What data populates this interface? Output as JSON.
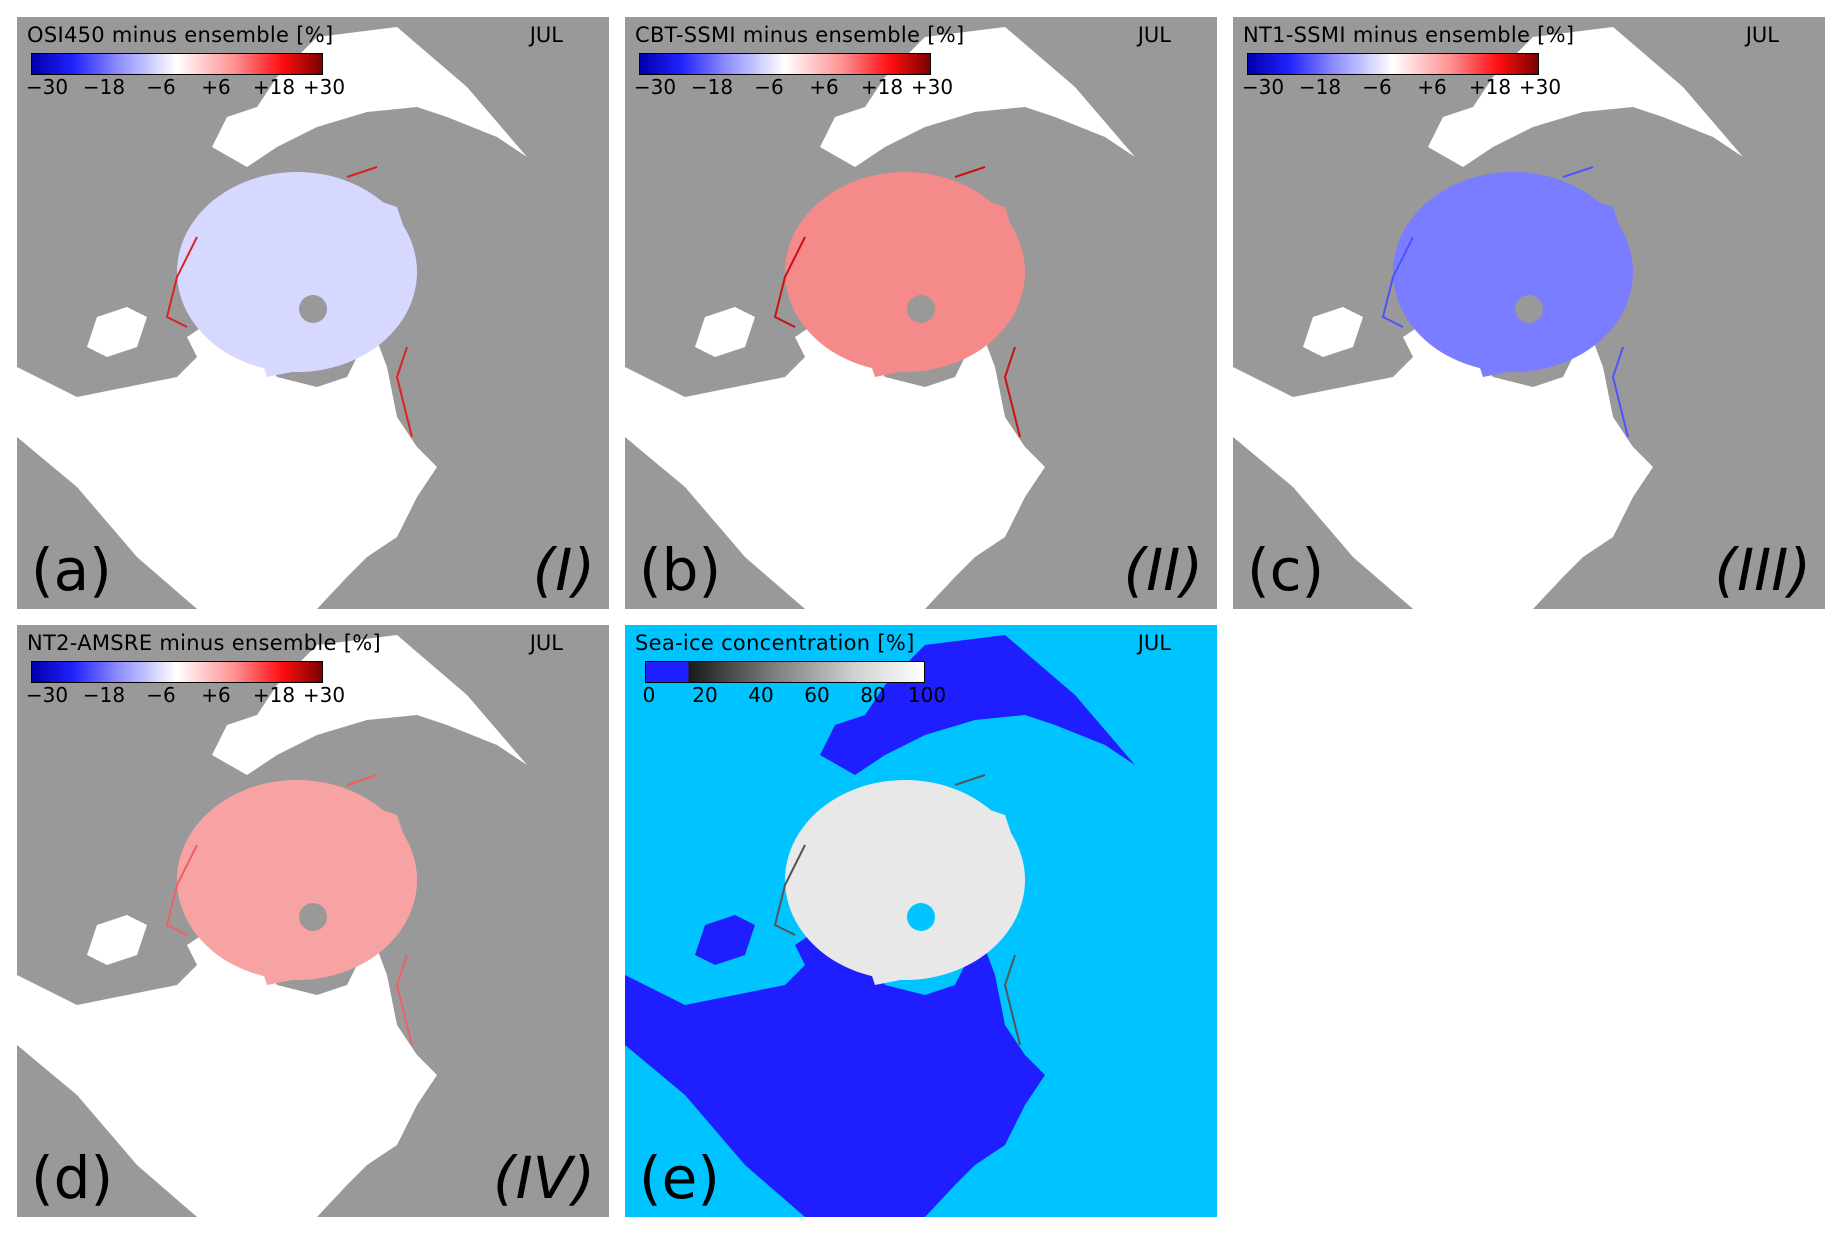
{
  "panels": [
    {
      "id": "a",
      "title": "OSI450 minus ensemble [%]",
      "month": "JUL",
      "letter": "(a)",
      "roman": "(I)",
      "type": "difference",
      "ocean_fill": "#d6d8ff",
      "edge": "#dd2222"
    },
    {
      "id": "b",
      "title": "CBT-SSMI minus ensemble [%]",
      "month": "JUL",
      "letter": "(b)",
      "roman": "(II)",
      "type": "difference",
      "ocean_fill": "#f58a8a",
      "edge": "#cc1111"
    },
    {
      "id": "c",
      "title": "NT1-SSMI minus ensemble [%]",
      "month": "JUL",
      "letter": "(c)",
      "roman": "(III)",
      "type": "difference",
      "ocean_fill": "#7a7dff",
      "edge": "#5052ff"
    },
    {
      "id": "d",
      "title": "NT2-AMSRE minus ensemble [%]",
      "month": "JUL",
      "letter": "(d)",
      "roman": "(IV)",
      "type": "difference",
      "ocean_fill": "#f7a3a3",
      "edge": "#f06060"
    },
    {
      "id": "e",
      "title": "Sea-ice concentration [%]",
      "month": "JUL",
      "letter": "(e)",
      "roman": "",
      "type": "concentration",
      "ocean_fill": "#e8e8e8",
      "edge": "#555555"
    }
  ],
  "diff_colorbar": {
    "ticks": [
      "−30",
      "−18",
      "−6",
      "+6",
      "+18",
      "+30"
    ],
    "min": -30,
    "max": 30,
    "colors": [
      "#0000aa",
      "#2020ff",
      "#8f8fff",
      "#ffffff",
      "#ff8f8f",
      "#ff1010",
      "#7a0000"
    ]
  },
  "conc_colorbar": {
    "ticks": [
      "0",
      "20",
      "40",
      "60",
      "80",
      "100"
    ],
    "min": 0,
    "max": 100,
    "colors": [
      "#2020ff",
      "#1a1a1a",
      "#7a7a7a",
      "#d0d0d0",
      "#ffffff"
    ]
  },
  "colors": {
    "land_diff": "#999999",
    "water_diff": "#ffffff",
    "land_conc": "#00c4ff",
    "water_conc": "#1e1eff",
    "pole_hole_diff": "#999999",
    "pole_hole_conc": "#00c4ff"
  }
}
